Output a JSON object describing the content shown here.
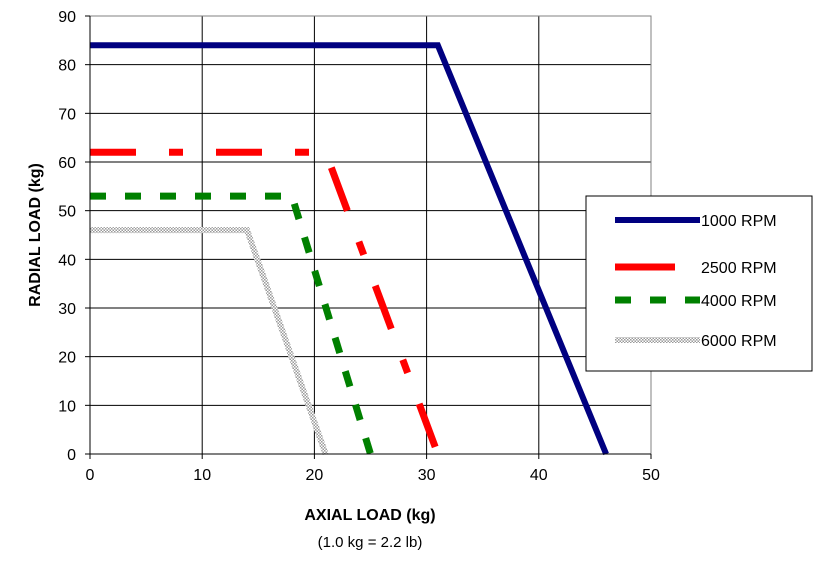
{
  "chart_data": {
    "type": "line",
    "xlabel": "AXIAL LOAD (kg)",
    "xnote": "(1.0 kg = 2.2 lb)",
    "ylabel": "RADIAL LOAD (kg)",
    "xlim": [
      0,
      50
    ],
    "ylim": [
      0,
      90
    ],
    "xticks": [
      "0",
      "10",
      "20",
      "30",
      "40",
      "50"
    ],
    "yticks": [
      "0",
      "10",
      "20",
      "30",
      "40",
      "50",
      "60",
      "70",
      "80",
      "90"
    ],
    "grid": true,
    "legend_position": "right",
    "series": [
      {
        "name": "1000 RPM",
        "color": "#000080",
        "style": "solid",
        "x": [
          0,
          31,
          46
        ],
        "y": [
          84,
          84,
          0
        ]
      },
      {
        "name": "2500 RPM",
        "color": "#ff0000",
        "style": "long-dash",
        "x": [
          0,
          21,
          31
        ],
        "y": [
          62,
          62,
          0
        ]
      },
      {
        "name": "4000 RPM",
        "color": "#008000",
        "style": "dash",
        "x": [
          0,
          18,
          25
        ],
        "y": [
          53,
          53,
          0
        ]
      },
      {
        "name": "6000 RPM",
        "color": "#a0a0a0",
        "style": "hatched",
        "x": [
          0,
          14,
          21
        ],
        "y": [
          46,
          46,
          0
        ]
      }
    ]
  }
}
